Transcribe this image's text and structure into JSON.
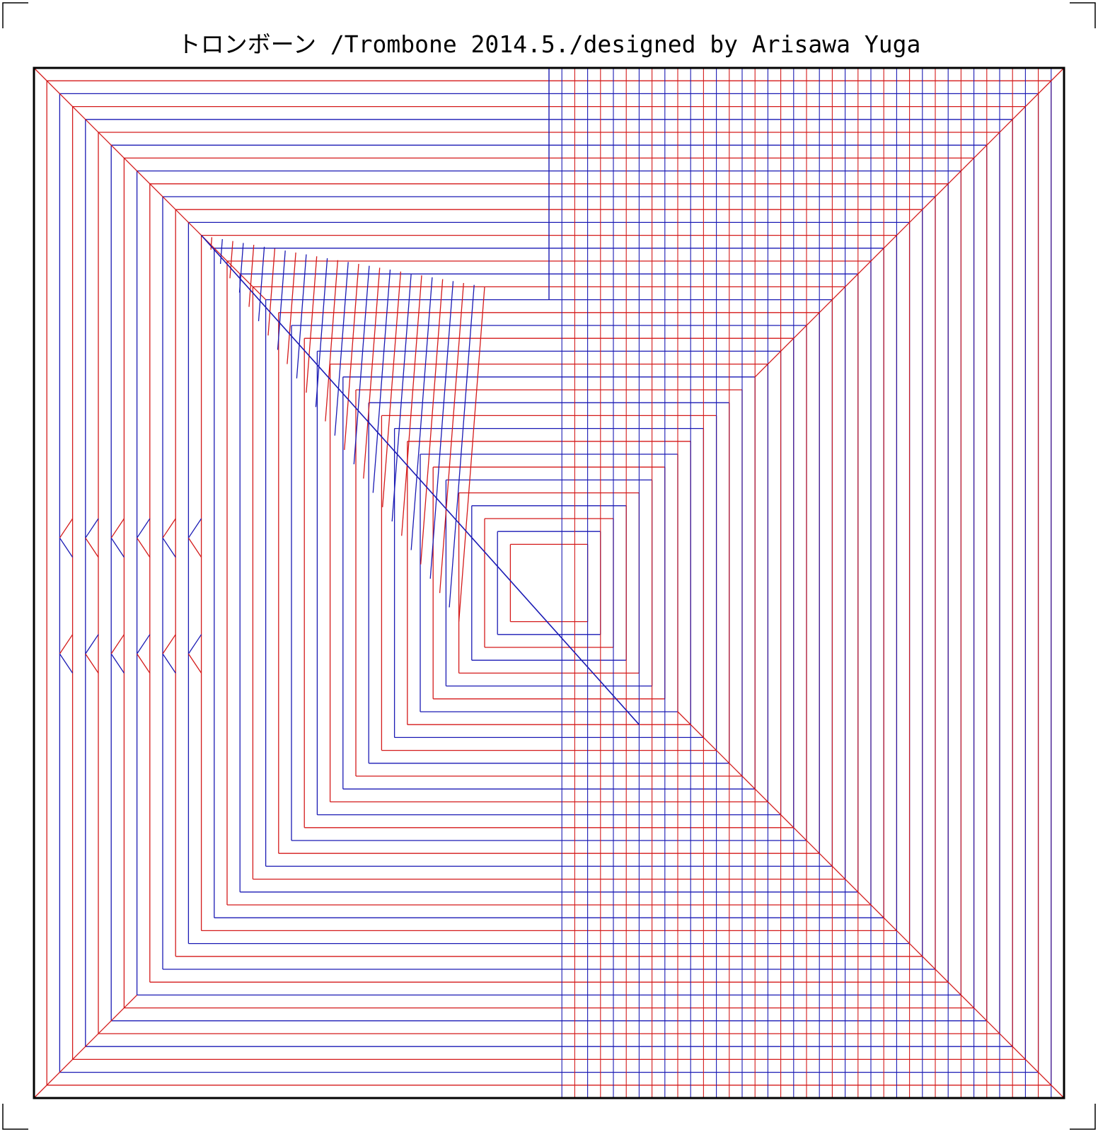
{
  "title": "トロンボーン /Trombone  2014.5./designed by Arisawa Yuga",
  "colors": {
    "mountain": "#d41a1a",
    "valley": "#1a1ab4",
    "border": "#000000",
    "background": "#ffffff"
  },
  "pattern": {
    "grid_divisions": 80,
    "top_left_corner_lines": 12,
    "top_right_corner_lines": 4,
    "bottom_left_corner_lines": 2,
    "bottom_right_corner_lines": 6
  }
}
